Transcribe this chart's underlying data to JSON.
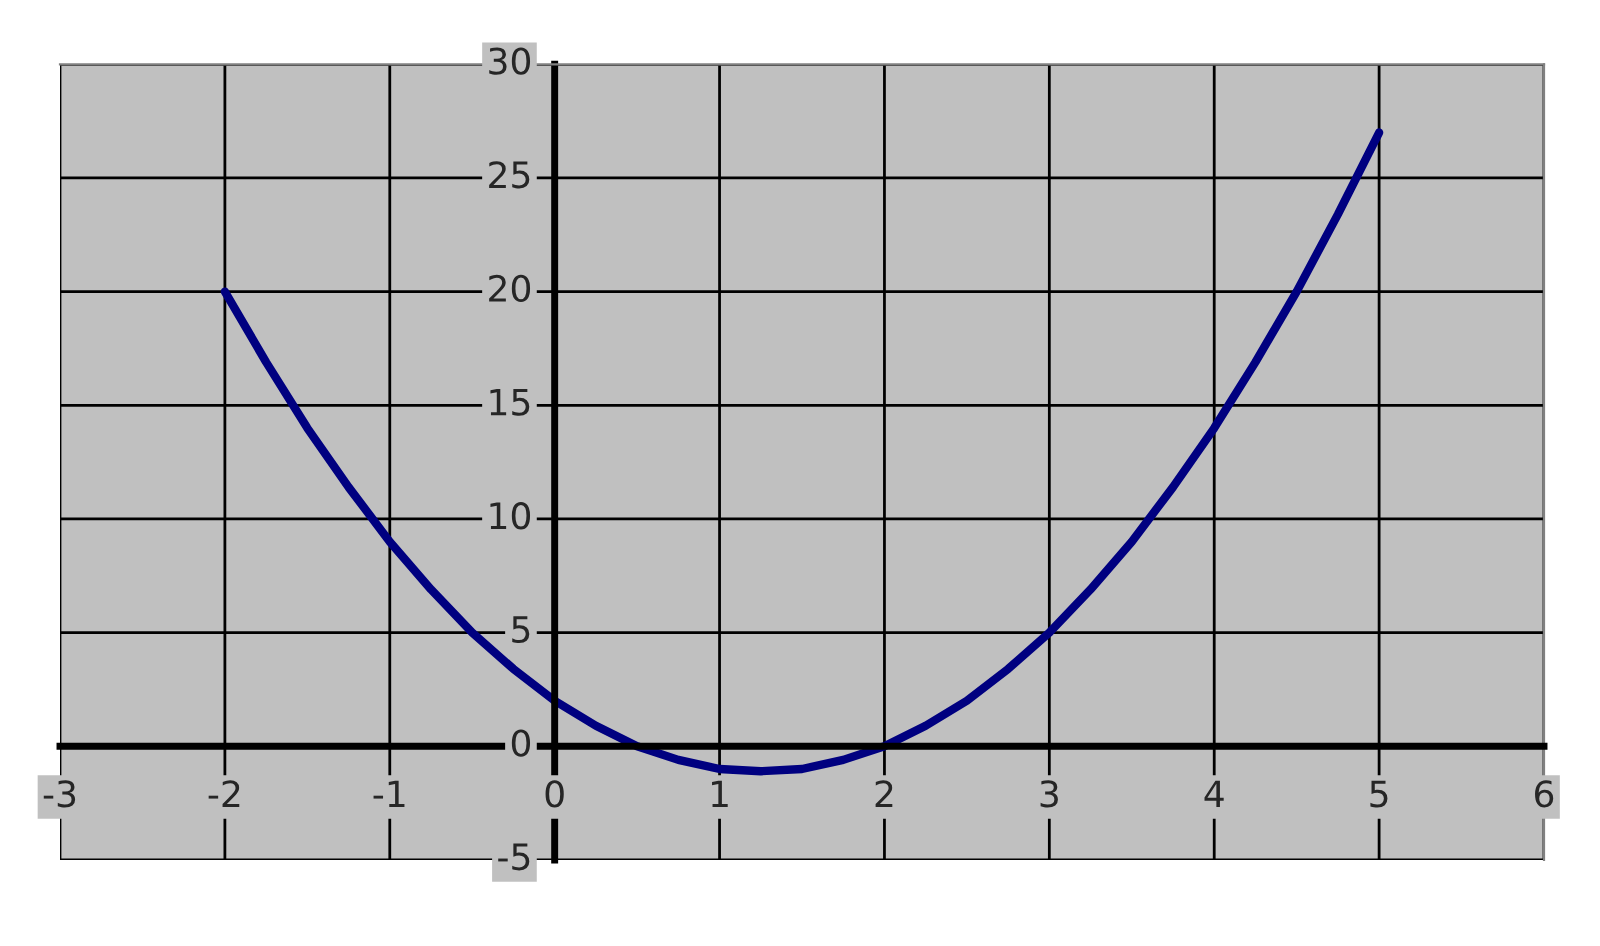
{
  "chart_data": {
    "type": "line",
    "x": [
      -2,
      -1.75,
      -1.5,
      -1.25,
      -1,
      -0.75,
      -0.5,
      -0.25,
      0,
      0.25,
      0.5,
      0.75,
      1,
      1.25,
      1.5,
      1.75,
      2,
      2.25,
      2.5,
      2.75,
      3,
      3.25,
      3.5,
      3.75,
      4,
      4.25,
      4.5,
      4.75,
      5
    ],
    "series": [
      {
        "color": "#000080",
        "values": [
          20,
          16.9,
          14,
          11.4,
          9,
          6.9,
          5,
          3.4,
          2,
          0.9,
          0,
          -0.6,
          -1,
          -1.1,
          -1,
          -0.6,
          0,
          0.9,
          2,
          3.4,
          5,
          6.9,
          9,
          11.4,
          14,
          16.9,
          20,
          23.4,
          27
        ]
      }
    ],
    "xlim": [
      -3,
      6
    ],
    "ylim": [
      -5,
      30
    ],
    "xticks": [
      -3,
      -2,
      -1,
      0,
      1,
      2,
      3,
      4,
      5,
      6
    ],
    "yticks": [
      -5,
      0,
      5,
      10,
      15,
      20,
      25,
      30
    ],
    "grid": true,
    "marker": "none",
    "line_style": "solid"
  }
}
